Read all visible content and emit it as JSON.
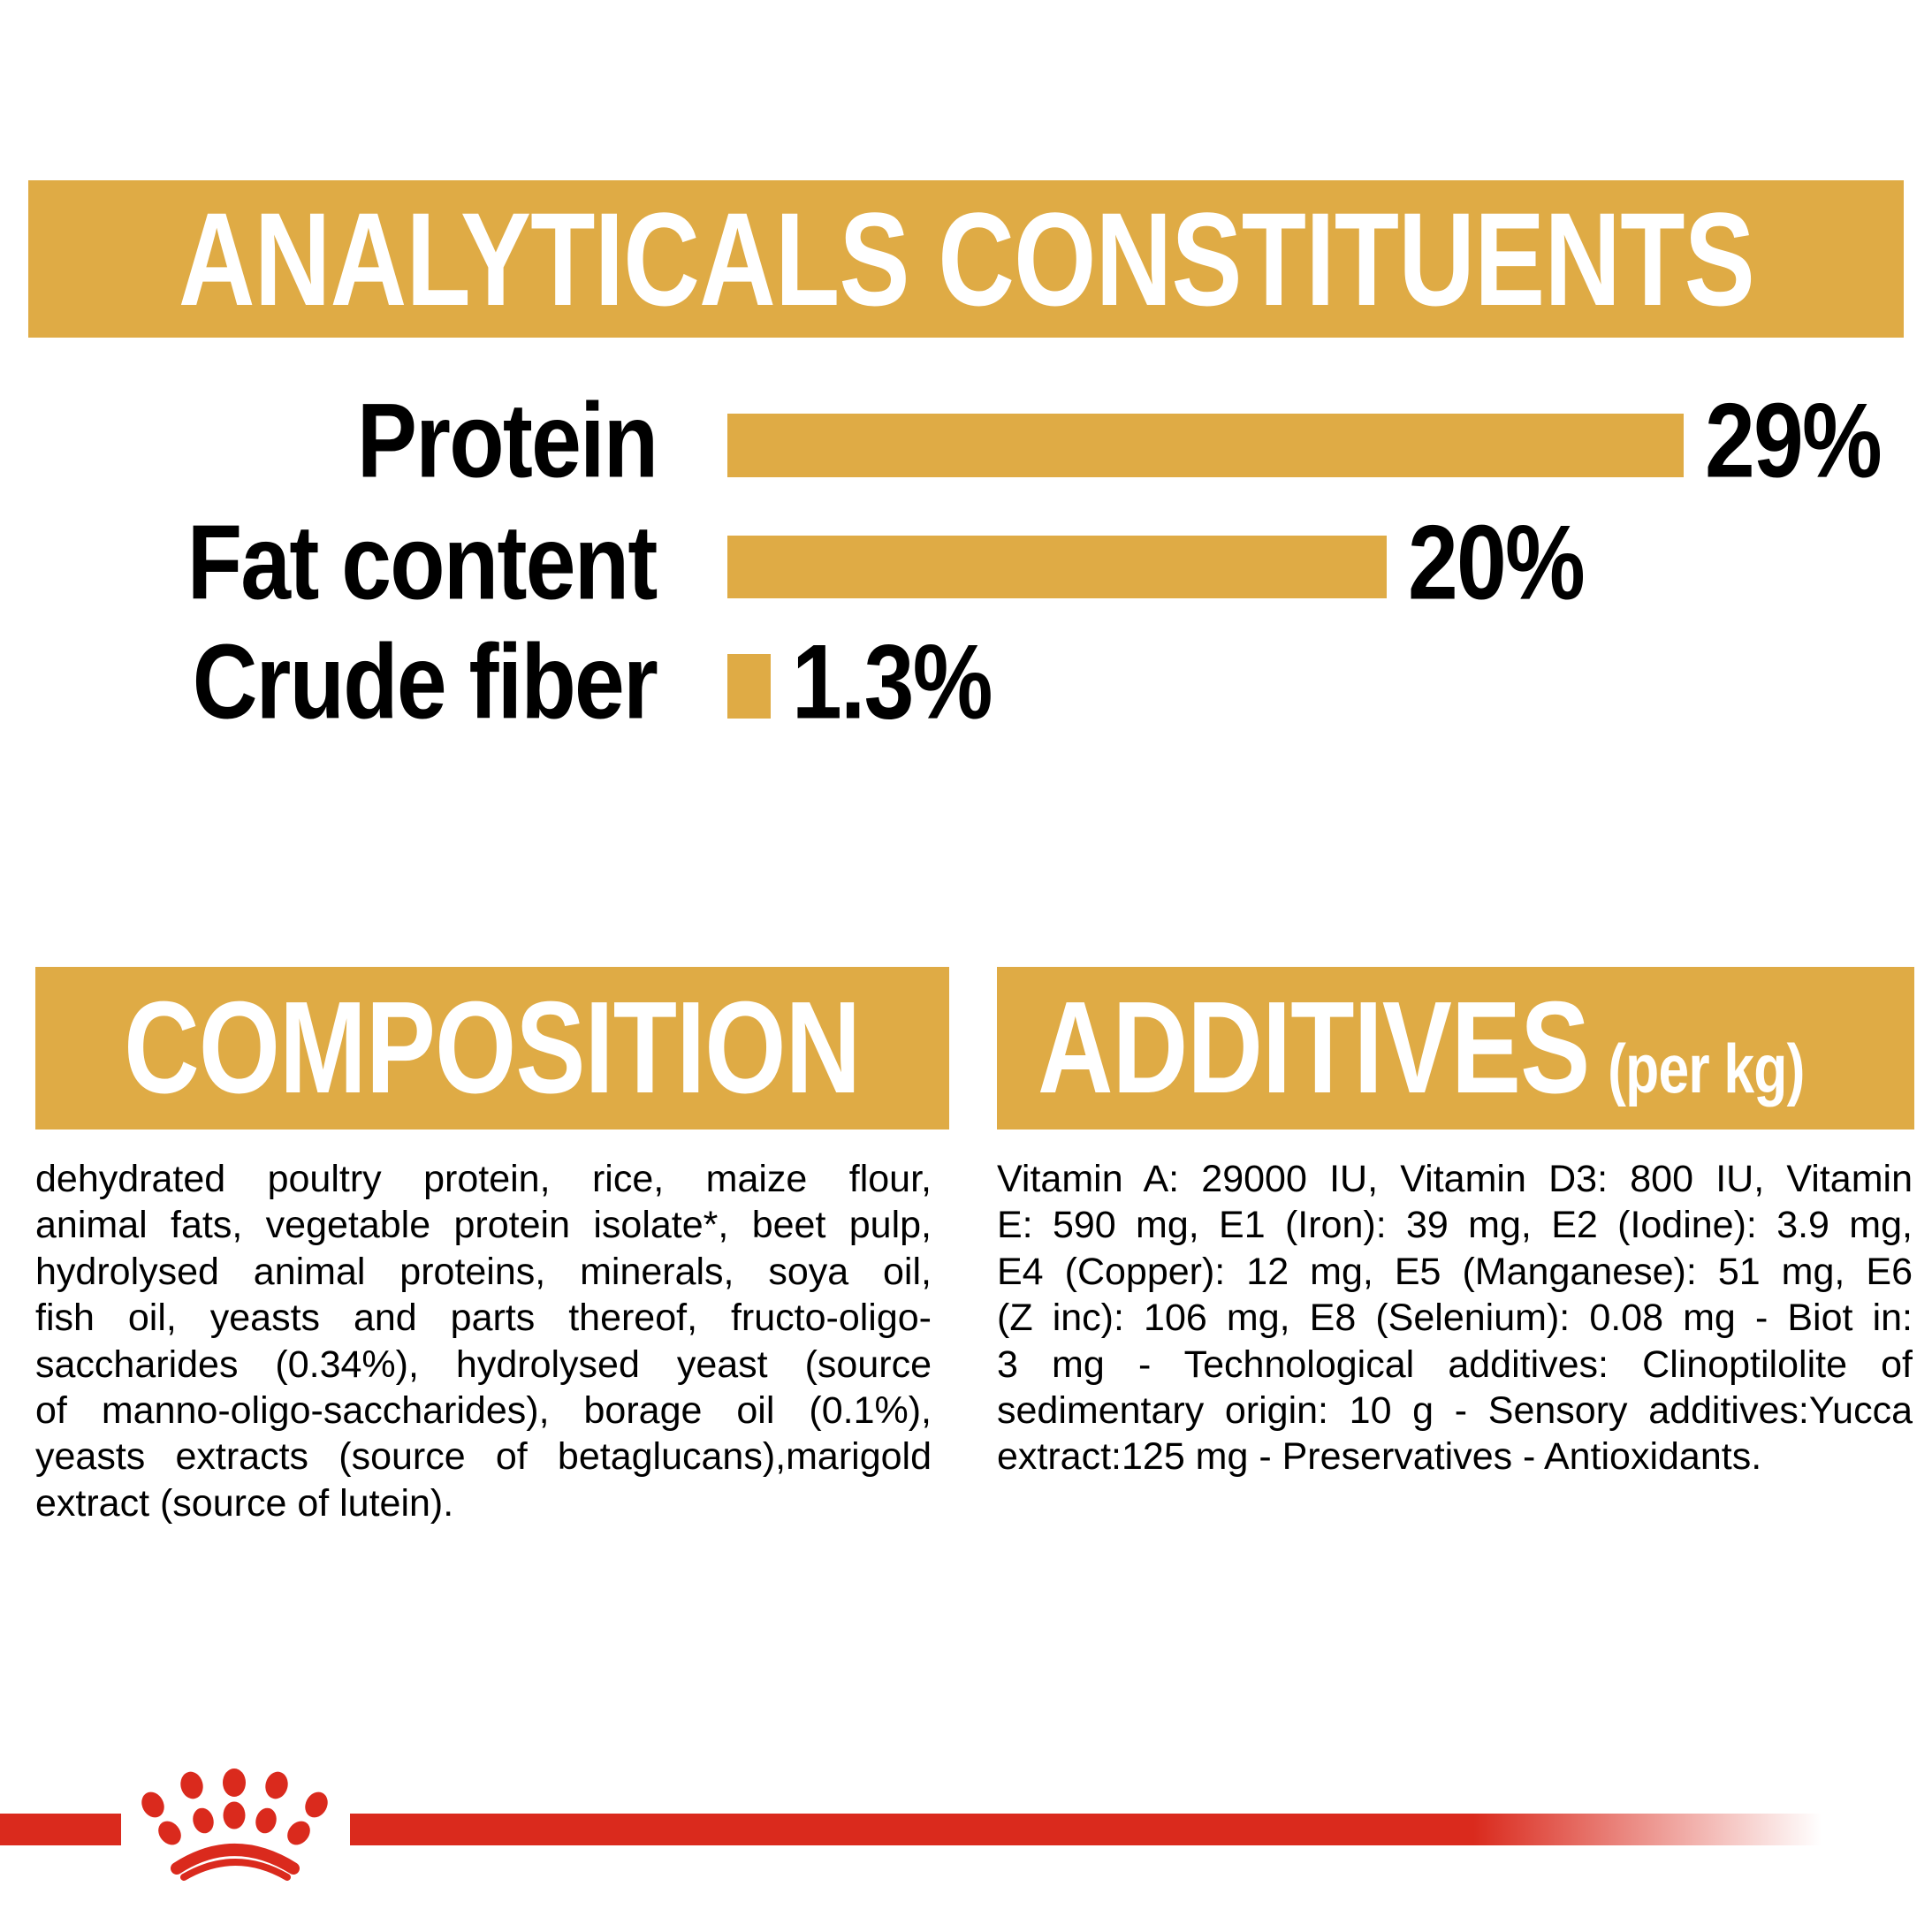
{
  "colors": {
    "gold": "#DFAB45",
    "red": "#DA2A1D",
    "text": "#000000",
    "band_text": "#FFFFFF",
    "background": "#FFFFFF"
  },
  "analyticals": {
    "title": "ANALYTICALS CONSTITUENTS"
  },
  "chart_data": {
    "type": "bar",
    "orientation": "horizontal",
    "title": "ANALYTICALS CONSTITUENTS",
    "categories": [
      "Protein",
      "Fat content",
      "Crude fiber"
    ],
    "values": [
      29,
      20,
      1.3
    ],
    "value_labels": [
      "29%",
      "20%",
      "1.3%"
    ],
    "unit": "%",
    "xlim": [
      0,
      29
    ],
    "grid": false,
    "bar_color": "#DFAB45",
    "value_label_position": "right-of-bar"
  },
  "composition": {
    "title": "COMPOSITION",
    "lines": [
      "dehydrated poultry protein, rice, maize flour,",
      "animal fats, vegetable protein isolate*, beet pulp,",
      "hydrolysed animal proteins, minerals, soya oil,",
      "fish oil, yeasts and parts thereof, fructo-oligo-",
      "saccharides (0.34%), hydrolysed yeast (source",
      "of manno-oligo-saccharides), borage oil (0.1%),",
      "yeasts extracts (source of betaglucans),marigold",
      "extract (source of lutein)."
    ]
  },
  "additives": {
    "title": "ADDITIVES",
    "title_suffix": "(per kg)",
    "lines": [
      "Vitamin A: 29000 IU, Vitamin D3: 800 IU, Vitamin",
      "E: 590 mg, E1 (Iron): 39 mg, E2 (Iodine): 3.9 mg,",
      "E4 (Copper): 12 mg, E5 (Manganese): 51 mg, E6",
      "(Z inc): 106 mg, E8 (Selenium): 0.08 mg - Biot in:",
      "3 mg - Technological additives: Clinoptilolite of",
      "sedimentary origin: 10 g - Sensory additives:Yucca",
      "extract:125 mg - Preservatives - Antioxidants."
    ]
  }
}
